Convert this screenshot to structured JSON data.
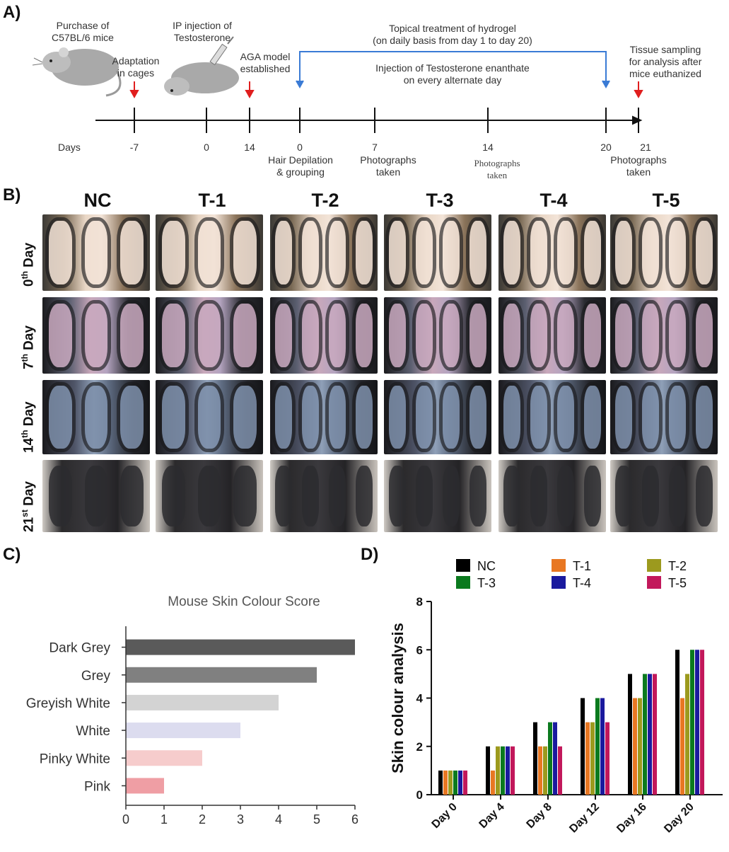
{
  "panels": {
    "a": "A)",
    "b": "B)",
    "c": "C)",
    "d": "D)"
  },
  "timeline": {
    "purchase": [
      "Purchase of",
      "C57BL/6 mice"
    ],
    "adaptation": [
      "Adaptation",
      "in cages"
    ],
    "ip_injection": [
      "IP injection of",
      "Testosterone"
    ],
    "aga_model": [
      "AGA model",
      "established"
    ],
    "topical": [
      "Topical treatment of hydrogel",
      "(on daily basis from day 1 to day 20)"
    ],
    "injection_te": [
      "Injection of Testosterone enanthate",
      "on every alternate day"
    ],
    "tissue": [
      "Tissue sampling",
      "for analysis after",
      "mice euthanized"
    ],
    "days_label": "Days",
    "ticks": [
      "-7",
      "0",
      "14",
      "0",
      "7",
      "14",
      "20",
      "21"
    ],
    "hair": [
      "Hair Depilation",
      "& grouping"
    ],
    "photos7": [
      "Photographs",
      "taken"
    ],
    "photos14": [
      "Photographs",
      "taken"
    ],
    "photos21": [
      "Photographs",
      "taken"
    ]
  },
  "photo_grid": {
    "groups": [
      "NC",
      "T-1",
      "T-2",
      "T-3",
      "T-4",
      "T-5"
    ],
    "days": [
      {
        "num": "0",
        "sup": "th",
        "word": "Day"
      },
      {
        "num": "7",
        "sup": "th",
        "word": "Day"
      },
      {
        "num": "14",
        "sup": "th",
        "word": "Day"
      },
      {
        "num": "21",
        "sup": "st",
        "word": "Day"
      }
    ]
  },
  "chart_data": [
    {
      "type": "bar",
      "title": "Mouse Skin Colour Score",
      "orientation": "horizontal",
      "categories": [
        "Dark Grey",
        "Grey",
        "Greyish White",
        "White",
        "Pinky White",
        "Pink"
      ],
      "values": [
        6,
        5,
        4,
        3,
        2,
        1
      ],
      "colors": [
        "#5a5a5a",
        "#808080",
        "#d3d3d3",
        "#dcdcef",
        "#f6cccc",
        "#ef9ea4"
      ],
      "xlim": [
        0,
        6
      ],
      "xticks": [
        "0",
        "1",
        "2",
        "3",
        "4",
        "5",
        "6"
      ],
      "grid": false
    },
    {
      "type": "bar",
      "title": "",
      "ylabel": "Skin colour analysis",
      "categories": [
        "Day 0",
        "Day 4",
        "Day 8",
        "Day 12",
        "Day 16",
        "Day 20"
      ],
      "ylim": [
        0,
        8
      ],
      "yticks": [
        "0",
        "2",
        "4",
        "6",
        "8"
      ],
      "legend_position": "top",
      "grid": false,
      "series": [
        {
          "name": "NC",
          "color": "#000000",
          "values": [
            1,
            2,
            3,
            4,
            5,
            6
          ]
        },
        {
          "name": "T-1",
          "color": "#e87722",
          "values": [
            1,
            1,
            2,
            3,
            4,
            4
          ]
        },
        {
          "name": "T-2",
          "color": "#9c9a1e",
          "values": [
            1,
            2,
            2,
            3,
            4,
            5
          ]
        },
        {
          "name": "T-3",
          "color": "#0b7a1e",
          "values": [
            1,
            2,
            3,
            4,
            5,
            6
          ]
        },
        {
          "name": "T-4",
          "color": "#1a1a9e",
          "values": [
            1,
            2,
            3,
            4,
            5,
            6
          ]
        },
        {
          "name": "T-5",
          "color": "#c2185b",
          "values": [
            1,
            2,
            2,
            3,
            5,
            6
          ]
        }
      ]
    }
  ]
}
